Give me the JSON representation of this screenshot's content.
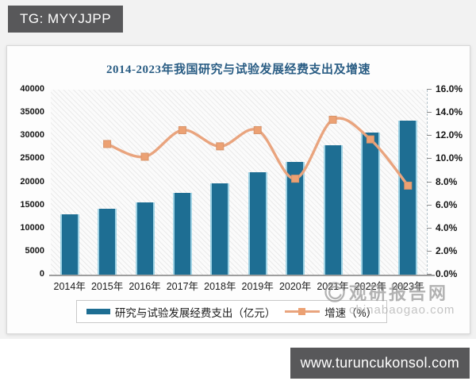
{
  "header": {
    "badge_label": "TG: MYYJJPP"
  },
  "chart_data": {
    "type": "bar+line",
    "title": "2014-2023年我国研究与试验发展经费支出及增速",
    "categories": [
      "2014年",
      "2015年",
      "2016年",
      "2017年",
      "2018年",
      "2019年",
      "2020年",
      "2021年",
      "2022年",
      "2023年"
    ],
    "series": [
      {
        "name": "研究与试验发展经费支出（亿元）",
        "type": "bar",
        "axis": "left",
        "color": "#1e6e93",
        "edge_color": "#9fd2e4",
        "values": [
          13016,
          14170,
          15677,
          17606,
          19678,
          22144,
          24393,
          27956,
          30783,
          33357
        ]
      },
      {
        "name": "增速（%）",
        "type": "line",
        "axis": "right",
        "color": "#e9a47e",
        "marker": "square",
        "marker_color": "#eca173",
        "values": [
          null,
          11.3,
          10.2,
          12.5,
          11.1,
          12.5,
          8.3,
          13.4,
          11.7,
          7.7
        ]
      }
    ],
    "left_axis": {
      "min": 0,
      "max": 40000,
      "step": 5000,
      "labels": [
        "0",
        "5000",
        "10000",
        "15000",
        "20000",
        "25000",
        "30000",
        "35000",
        "40000"
      ]
    },
    "right_axis": {
      "min": 0,
      "max": 16,
      "step": 2,
      "labels": [
        "0.0%",
        "2.0%",
        "4.0%",
        "6.0%",
        "8.0%",
        "10.0%",
        "12.0%",
        "14.0%",
        "16.0%"
      ]
    },
    "legend_position": "bottom",
    "grid": false,
    "plot_background": "diagonal-hatch"
  },
  "watermark": {
    "logo": "swirl-circle-logo",
    "site_name": "观研报告网",
    "site_url": "chinabaogao.com"
  },
  "footer": {
    "site_url": "www.turuncukonsol.com"
  }
}
